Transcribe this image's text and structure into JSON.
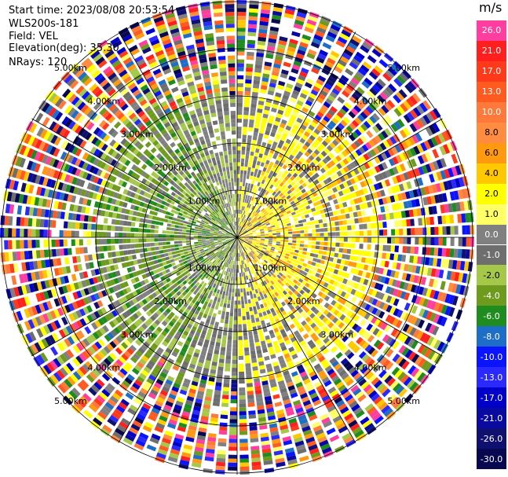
{
  "header": {
    "start_time": "Start time: 2023/08/08 20:53:54",
    "site": "WLS200s-181",
    "field": "Field: VEL",
    "elevation": "Elevation(deg): 35.30",
    "nrays": "NRays: 120"
  },
  "colorbar": {
    "unit": "m/s",
    "labels": [
      "26.0",
      "21.0",
      "17.0",
      "13.0",
      "10.0",
      "8.0",
      "6.0",
      "4.0",
      "2.0",
      "1.0",
      "0.0",
      "-1.0",
      "-2.0",
      "-4.0",
      "-6.0",
      "-8.0",
      "-10.0",
      "-13.0",
      "-17.0",
      "-21.0",
      "-26.0",
      "-30.0"
    ],
    "colors": [
      "#ff3ea0",
      "#ff1f1f",
      "#ff3a1a",
      "#ff5a20",
      "#ff7a3a",
      "#ff8c40",
      "#ff9a10",
      "#ffc800",
      "#ffff00",
      "#ffff66",
      "#808080",
      "#6e6e6e",
      "#a6c84a",
      "#6e9a1e",
      "#1e8c1e",
      "#1e6ec8",
      "#0a14ff",
      "#2a2aff",
      "#0000c8",
      "#0a0aa0",
      "#101070",
      "#080850"
    ]
  },
  "chart_data": {
    "type": "heatmap",
    "subtype": "polar PPI (plan position indicator)",
    "field": "VEL",
    "units": "m/s",
    "nrays": 120,
    "elevation_deg": 35.3,
    "range_rings_km": [
      1.0,
      2.0,
      3.0,
      4.0,
      5.0
    ],
    "ring_labels": [
      "1.00km",
      "2.00km",
      "3.00km",
      "4.00km",
      "5.00km"
    ],
    "azimuth_spokes_deg": [
      0,
      30,
      60,
      90,
      120,
      150,
      180,
      210,
      240,
      270,
      300,
      330
    ],
    "color_scale_min": -30.0,
    "color_scale_max": 26.0,
    "pattern": {
      "west_sector_approach": "green / olive, about -2 to -6 m/s",
      "east_sector_recede": "yellow / orange, about 1 to 6 m/s",
      "north_south_near": "grey, about 0 m/s",
      "beyond_3_5km": "noisy, mixed colours"
    }
  }
}
